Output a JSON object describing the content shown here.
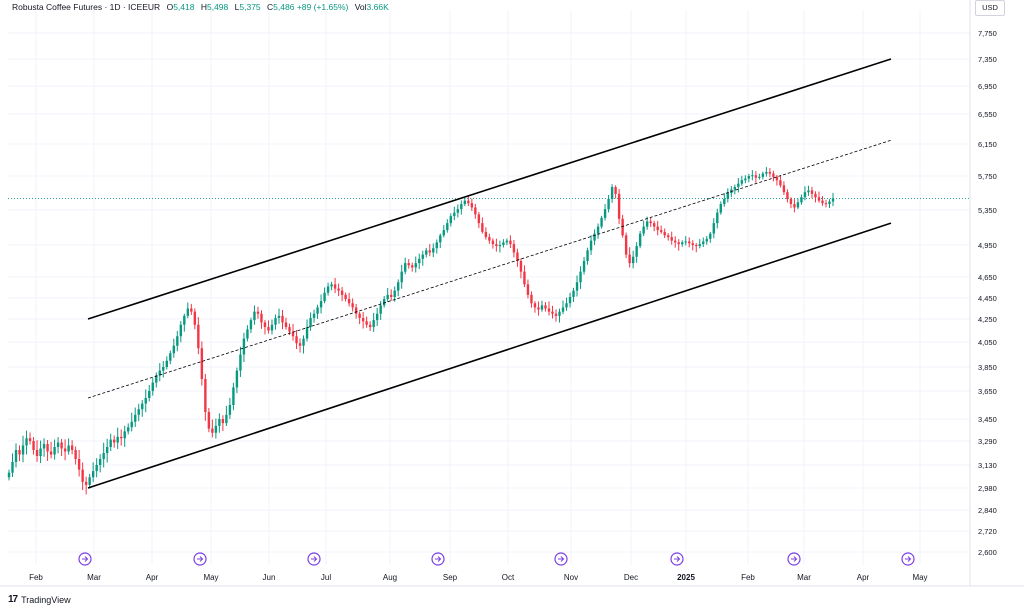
{
  "header": {
    "symbol": "Robusta Coffee Futures · 1D · ICEEUR",
    "open_label": "O",
    "open": "5,418",
    "high_label": "H",
    "high": "5,498",
    "low_label": "L",
    "low": "5,375",
    "close_label": "C",
    "close": "5,486",
    "change": "+89 (+1.65%)",
    "vol_label": "Vol",
    "vol": "3.66K"
  },
  "currency": "USD",
  "footer": {
    "logo": "17",
    "brand": "TradingView"
  },
  "colors": {
    "up": "#089981",
    "down": "#f23645",
    "event": "#7b3fe4",
    "grid": "#f0f3fa",
    "channel": "#000000"
  },
  "chart_data": {
    "type": "candlestick",
    "y_ticks": [
      "7,750",
      "7,350",
      "6,950",
      "6,550",
      "6,150",
      "5,750",
      "5,350",
      "4,950",
      "4,650",
      "4,450",
      "4,250",
      "4,050",
      "3,850",
      "3,650",
      "3,450",
      "3,290",
      "3,130",
      "2,980",
      "2,840",
      "2,720",
      "2,600"
    ],
    "x_ticks": [
      "Feb",
      "Mar",
      "Apr",
      "May",
      "Jun",
      "Jul",
      "Aug",
      "Sep",
      "Oct",
      "Nov",
      "Dec",
      "2025",
      "Feb",
      "Mar",
      "Apr",
      "May"
    ],
    "current_price": 5486,
    "event_icon": "calendar-event-icon",
    "event_count": 8,
    "channel": {
      "upper": {
        "start": {
          "date": "2024-02-27",
          "price": 4250
        },
        "end": {
          "date": "2025-03-28",
          "price": 7350
        }
      },
      "mid": {
        "start": {
          "date": "2024-02-27",
          "price": 3600
        },
        "end": {
          "date": "2025-03-28",
          "price": 6200
        }
      },
      "lower": {
        "start": {
          "date": "2024-02-27",
          "price": 2980
        },
        "end": {
          "date": "2025-03-28",
          "price": 5200
        }
      }
    },
    "closes": [
      3080,
      3150,
      3230,
      3200,
      3260,
      3310,
      3290,
      3230,
      3190,
      3240,
      3270,
      3220,
      3200,
      3250,
      3280,
      3240,
      3220,
      3260,
      3230,
      3170,
      3100,
      3020,
      3000,
      3050,
      3090,
      3130,
      3170,
      3210,
      3250,
      3300,
      3280,
      3320,
      3310,
      3360,
      3390,
      3430,
      3480,
      3520,
      3560,
      3600,
      3650,
      3720,
      3780,
      3820,
      3850,
      3900,
      3960,
      4020,
      4100,
      4200,
      4280,
      4350,
      4320,
      4200,
      4000,
      3750,
      3500,
      3380,
      3350,
      3400,
      3450,
      3420,
      3480,
      3550,
      3680,
      3820,
      3950,
      4080,
      4160,
      4240,
      4320,
      4300,
      4220,
      4180,
      4150,
      4200,
      4260,
      4280,
      4220,
      4180,
      4140,
      4100,
      4040,
      4020,
      4080,
      4180,
      4260,
      4300,
      4360,
      4420,
      4500,
      4560,
      4580,
      4540,
      4520,
      4480,
      4440,
      4400,
      4360,
      4300,
      4260,
      4230,
      4200,
      4180,
      4240,
      4300,
      4380,
      4440,
      4480,
      4460,
      4520,
      4600,
      4700,
      4780,
      4760,
      4740,
      4780,
      4820,
      4860,
      4900,
      4880,
      4920,
      4980,
      5060,
      5120,
      5200,
      5280,
      5320,
      5360,
      5420,
      5460,
      5430,
      5380,
      5300,
      5200,
      5100,
      5040,
      5000,
      4960,
      4940,
      4950,
      4980,
      5000,
      4960,
      4880,
      4800,
      4700,
      4580,
      4480,
      4400,
      4360,
      4340,
      4380,
      4350,
      4320,
      4300,
      4280,
      4320,
      4360,
      4400,
      4460,
      4520,
      4600,
      4700,
      4800,
      4900,
      5000,
      5080,
      5160,
      5260,
      5360,
      5480,
      5620,
      5540,
      5250,
      5060,
      4860,
      4780,
      4840,
      4940,
      5080,
      5160,
      5220,
      5200,
      5160,
      5120,
      5100,
      5060,
      5040,
      5000,
      4980,
      4960,
      4980,
      4990,
      4970,
      4950,
      4940,
      4960,
      4990,
      5020,
      5080,
      5200,
      5320,
      5420,
      5480,
      5550,
      5590,
      5620,
      5660,
      5700,
      5720,
      5750,
      5760,
      5730,
      5740,
      5780,
      5800,
      5780,
      5740,
      5700,
      5640,
      5560,
      5480,
      5420,
      5380,
      5440,
      5500,
      5560,
      5580,
      5540,
      5500,
      5460,
      5430,
      5420,
      5450,
      5486
    ]
  }
}
